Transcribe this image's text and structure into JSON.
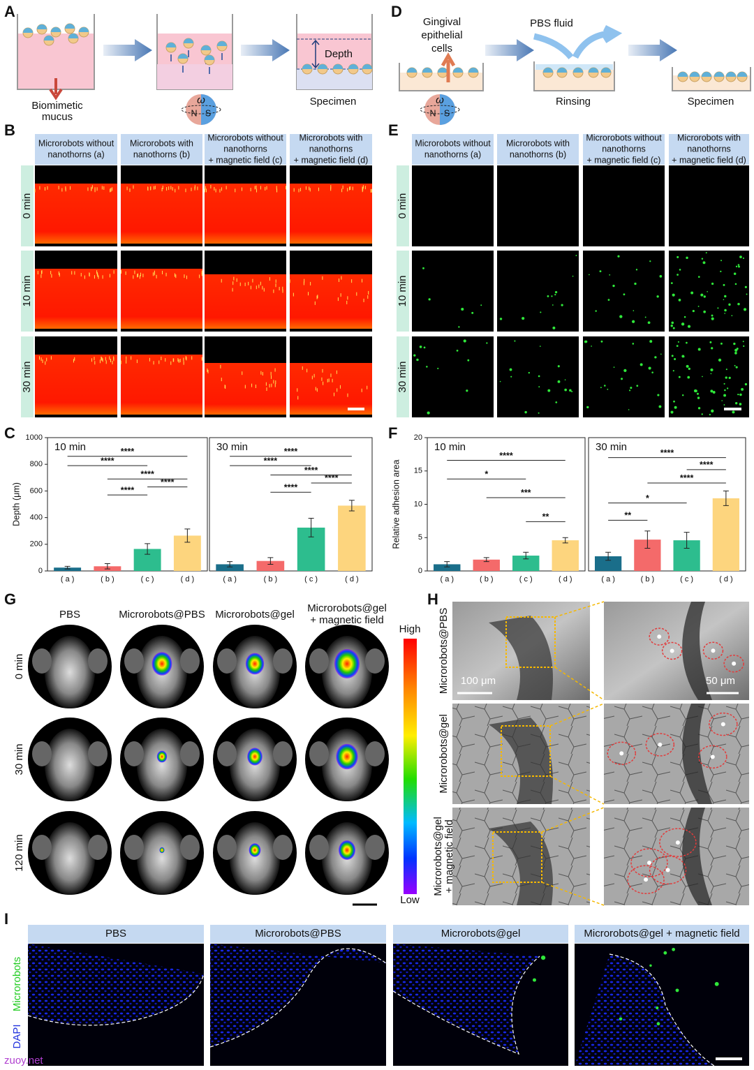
{
  "panel_labels": [
    "A",
    "B",
    "C",
    "D",
    "E",
    "F",
    "G",
    "H",
    "I"
  ],
  "panel_a": {
    "mucus": [
      "Biomimetic",
      "mucus"
    ],
    "depth": "Depth",
    "specimen": "Specimen",
    "omega": "ω",
    "n": "N",
    "s": "S"
  },
  "panel_d": {
    "cells": [
      "Gingival",
      "epithelial",
      "cells"
    ],
    "fluid": "PBS fluid",
    "rinsing": "Rinsing",
    "specimen": "Specimen",
    "omega": "ω",
    "n": "N",
    "s": "S"
  },
  "panel_b": {
    "columns": [
      [
        "Microrobots without",
        "nanothorns (a)"
      ],
      [
        "Microrobots with",
        "nanothorns (b)"
      ],
      [
        "Microrobots without",
        "nanothorns",
        "+ magnetic field (c)"
      ],
      [
        "Microrobots with",
        "nanothorns",
        "+ magnetic field (d)"
      ]
    ],
    "rows": [
      "0 min",
      "10 min",
      "30 min"
    ]
  },
  "panel_e": {
    "columns": [
      [
        "Microrobots without",
        "nanothorns (a)"
      ],
      [
        "Microrobots with",
        "nanothorns (b)"
      ],
      [
        "Microrobots without",
        "nanothorns",
        "+ magnetic field (c)"
      ],
      [
        "Microrobots with",
        "nanothorns",
        "+ magnetic field (d)"
      ]
    ],
    "rows": [
      "0 min",
      "10 min",
      "30 min"
    ]
  },
  "panel_g": {
    "columns": [
      [
        "PBS"
      ],
      [
        "Microrobots@PBS"
      ],
      [
        "Microrobots@gel"
      ],
      [
        "Microrobots@gel",
        "+ magnetic field"
      ]
    ],
    "rows": [
      "0 min",
      "30 min",
      "120 min"
    ],
    "high": "High",
    "low": "Low"
  },
  "panel_h": {
    "rows": [
      [
        "Microrobots@PBS"
      ],
      [
        "Microrobots@gel"
      ],
      [
        "Microrobots@gel",
        "+ magnetic field"
      ]
    ],
    "scale_left": "100 μm",
    "scale_right": "50 μm"
  },
  "panel_i": {
    "columns": [
      "PBS",
      "Microrobots@PBS",
      "Microrobots@gel",
      "Microrobots@gel + magnetic field"
    ],
    "stains": [
      "Microrobots",
      "DAPI"
    ]
  },
  "watermark": "zuoy.net",
  "chart_data": [
    {
      "type": "bar",
      "title": "10 min",
      "ylabel": "Depth (μm)",
      "categories": [
        "( a )",
        "( b )",
        "( c )",
        "( d )"
      ],
      "values": [
        25,
        35,
        165,
        265
      ],
      "errors": [
        10,
        20,
        40,
        50
      ],
      "colors": [
        "#1a6e8a",
        "#f46a6a",
        "#2dbd8e",
        "#fdd57e"
      ],
      "ylim": [
        0,
        1000
      ],
      "yticks": [
        0,
        200,
        400,
        600,
        800,
        1000
      ],
      "annotations": [
        "****",
        "****",
        "****",
        "****",
        "****"
      ]
    },
    {
      "type": "bar",
      "title": "30 min",
      "categories": [
        "( a )",
        "( b )",
        "( c )",
        "( d )"
      ],
      "values": [
        50,
        75,
        325,
        490
      ],
      "errors": [
        20,
        25,
        70,
        40
      ],
      "colors": [
        "#1a6e8a",
        "#f46a6a",
        "#2dbd8e",
        "#fdd57e"
      ],
      "ylim": [
        0,
        1000
      ],
      "annotations": [
        "****",
        "****",
        "****",
        "****",
        "****"
      ]
    },
    {
      "type": "bar",
      "title": "10 min",
      "ylabel": "Relative adhesion area",
      "categories": [
        "( a )",
        "( b )",
        "( c )",
        "( d )"
      ],
      "values": [
        1.0,
        1.7,
        2.3,
        4.6
      ],
      "errors": [
        0.4,
        0.3,
        0.5,
        0.4
      ],
      "colors": [
        "#1a6e8a",
        "#f46a6a",
        "#2dbd8e",
        "#fdd57e"
      ],
      "ylim": [
        0,
        20
      ],
      "yticks": [
        0,
        5,
        10,
        15,
        20
      ],
      "annotations": [
        "****",
        "*",
        "***",
        "**"
      ]
    },
    {
      "type": "bar",
      "title": "30 min",
      "categories": [
        "( a )",
        "( b )",
        "( c )",
        "( d )"
      ],
      "values": [
        2.2,
        4.7,
        4.6,
        10.9
      ],
      "errors": [
        0.6,
        1.3,
        1.2,
        1.1
      ],
      "colors": [
        "#1a6e8a",
        "#f46a6a",
        "#2dbd8e",
        "#fdd57e"
      ],
      "ylim": [
        0,
        20
      ],
      "annotations": [
        "****",
        "****",
        "****",
        "*",
        "**"
      ]
    }
  ]
}
